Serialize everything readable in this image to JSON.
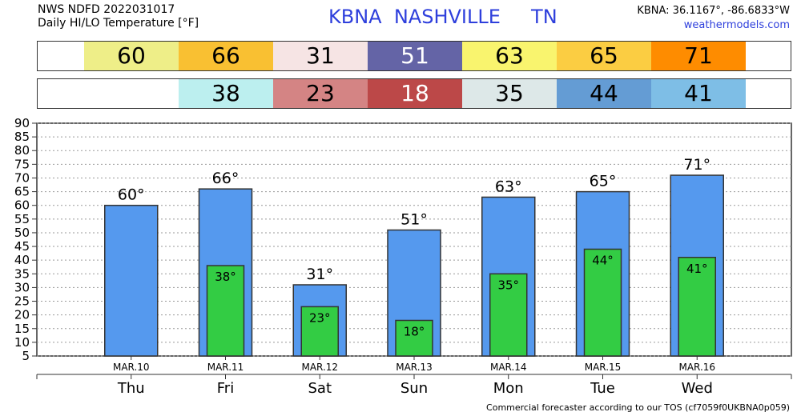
{
  "header": {
    "product_line": "NWS NDFD 2022031017",
    "subtitle": "Daily HI/LO Temperature [°F]",
    "station": "KBNA  NASHVILLE     TN",
    "coords": "KBNA: 36.1167°, -86.6833°W",
    "website": "weathermodels.com"
  },
  "strips": {
    "hi": [
      {
        "value": "60",
        "color": "#eeee88",
        "text_color": "#000000"
      },
      {
        "value": "66",
        "color": "#f9c032",
        "text_color": "#000000"
      },
      {
        "value": "31",
        "color": "#f6e4e4",
        "text_color": "#000000"
      },
      {
        "value": "51",
        "color": "#6464a6",
        "text_color": "#ffffff"
      },
      {
        "value": "63",
        "color": "#f9f46e",
        "text_color": "#000000"
      },
      {
        "value": "65",
        "color": "#fbcd42",
        "text_color": "#000000"
      },
      {
        "value": "71",
        "color": "#fe8c00",
        "text_color": "#000000"
      }
    ],
    "lo": [
      {
        "value": "",
        "color": "#ffffff",
        "text_color": "#000000"
      },
      {
        "value": "38",
        "color": "#bcefef",
        "text_color": "#000000"
      },
      {
        "value": "23",
        "color": "#d48484",
        "text_color": "#000000"
      },
      {
        "value": "18",
        "color": "#bc4848",
        "text_color": "#ffffff"
      },
      {
        "value": "35",
        "color": "#dde8e8",
        "text_color": "#000000"
      },
      {
        "value": "44",
        "color": "#649cd4",
        "text_color": "#000000"
      },
      {
        "value": "41",
        "color": "#7ebee6",
        "text_color": "#000000"
      }
    ]
  },
  "chart_data": {
    "type": "bar",
    "categories": [
      "Thu",
      "Fri",
      "Sat",
      "Sun",
      "Mon",
      "Tue",
      "Wed"
    ],
    "dates": [
      "MAR.10",
      "MAR.11",
      "MAR.12",
      "MAR.13",
      "MAR.14",
      "MAR.15",
      "MAR.16"
    ],
    "series": [
      {
        "name": "HI",
        "values": [
          60,
          66,
          31,
          51,
          63,
          65,
          71
        ],
        "labels": [
          "60°",
          "66°",
          "31°",
          "51°",
          "63°",
          "65°",
          "71°"
        ],
        "color": "#5599ee"
      },
      {
        "name": "LO",
        "values": [
          null,
          38,
          23,
          18,
          35,
          44,
          41
        ],
        "labels": [
          "",
          "38°",
          "23°",
          "18°",
          "35°",
          "44°",
          "41°"
        ],
        "color": "#33cc44"
      }
    ],
    "ylim": [
      5,
      90
    ],
    "yticks": [
      5,
      10,
      15,
      20,
      25,
      30,
      35,
      40,
      45,
      50,
      55,
      60,
      65,
      70,
      75,
      80,
      85,
      90
    ],
    "grid": true
  },
  "footer": "Commercial forecaster according to our TOS (cf7059f0UKBNA0p059)"
}
